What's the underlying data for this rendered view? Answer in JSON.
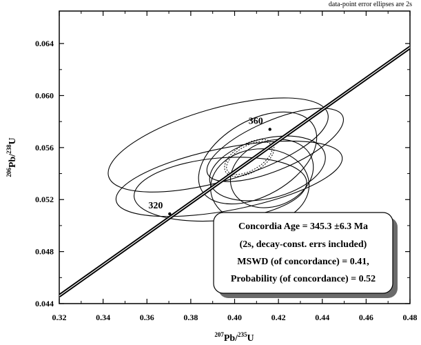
{
  "note": "data-point error ellipses are 2s",
  "chart_data": {
    "type": "scatter",
    "title": "",
    "xlabel": {
      "base": "Pb/",
      "sup1": "207",
      "sup2": "235",
      "end": "U"
    },
    "ylabel": {
      "base": "Pb/",
      "sup1": "206",
      "sup2": "238",
      "end": "U"
    },
    "xlim": [
      0.32,
      0.48
    ],
    "ylim": [
      0.044,
      0.0665
    ],
    "x_ticks": [
      0.32,
      0.34,
      0.36,
      0.38,
      0.4,
      0.42,
      0.44,
      0.46,
      0.48
    ],
    "y_ticks": [
      0.044,
      0.048,
      0.052,
      0.056,
      0.06,
      0.064
    ],
    "x_tick_labels": [
      "0.32",
      "0.34",
      "0.36",
      "0.38",
      "0.40",
      "0.42",
      "0.44",
      "0.46",
      "0.48"
    ],
    "y_tick_labels": [
      "0.044",
      "0.048",
      "0.052",
      "0.056",
      "0.060",
      "0.064"
    ],
    "grid": false,
    "concordia_curve": {
      "points": [
        [
          0.32,
          0.0446
        ],
        [
          0.48,
          0.0637
        ]
      ]
    },
    "age_markers": [
      {
        "label": "320",
        "x": 0.3704,
        "y": 0.0509
      },
      {
        "label": "360",
        "x": 0.4161,
        "y": 0.0574
      }
    ],
    "ellipses": [
      {
        "cx": 0.3925,
        "cy": 0.0562,
        "rx": 0.052,
        "ry": 0.0028,
        "angle": 16
      },
      {
        "cx": 0.3975,
        "cy": 0.0536,
        "rx": 0.0525,
        "ry": 0.0024,
        "angle": 11
      },
      {
        "cx": 0.3935,
        "cy": 0.0528,
        "rx": 0.0395,
        "ry": 0.0024,
        "angle": 5
      },
      {
        "cx": 0.4115,
        "cy": 0.053,
        "rx": 0.0225,
        "ry": 0.0029,
        "angle": 4
      },
      {
        "cx": 0.4105,
        "cy": 0.0552,
        "rx": 0.0295,
        "ry": 0.0029,
        "angle": 30
      },
      {
        "cx": 0.4185,
        "cy": 0.0562,
        "rx": 0.0335,
        "ry": 0.0019,
        "angle": 23
      },
      {
        "cx": 0.417,
        "cy": 0.054,
        "rx": 0.0195,
        "ry": 0.0025,
        "angle": 22
      },
      {
        "cx": 0.415,
        "cy": 0.0544,
        "rx": 0.027,
        "ry": 0.0023,
        "angle": 14
      }
    ],
    "concordia_ellipse": {
      "cx": 0.4067,
      "cy": 0.0552,
      "rx": 0.0125,
      "ry": 0.0011,
      "angle": 30
    },
    "annotation_lines": [
      "Concordia Age = 345.3 ±6.3 Ma",
      "(2s, decay-const. errs included)",
      "MSWD (of concordance) = 0.41,",
      "Probability (of concordance) = 0.52"
    ]
  }
}
